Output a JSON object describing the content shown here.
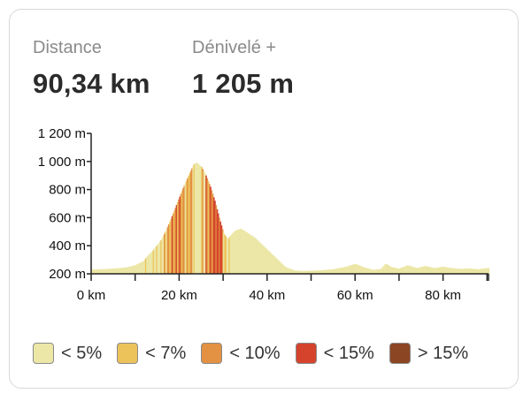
{
  "stats": {
    "distance": {
      "label": "Distance",
      "value": "90,34 km"
    },
    "elevation": {
      "label": "Dénivelé +",
      "value": "1 205 m"
    }
  },
  "legend": [
    {
      "label": "< 5%",
      "color": "#ece7a6"
    },
    {
      "label": "< 7%",
      "color": "#ecc25b"
    },
    {
      "label": "< 10%",
      "color": "#e39142"
    },
    {
      "label": "< 15%",
      "color": "#d5432d"
    },
    {
      "label": "> 15%",
      "color": "#8c4523"
    }
  ],
  "chart_data": {
    "type": "area",
    "xlabel": "",
    "ylabel": "",
    "x_unit": "km",
    "y_unit": "m",
    "xlim": [
      0,
      90.34
    ],
    "ylim": [
      200,
      1200
    ],
    "x_ticks": [
      "0 km",
      "20 km",
      "40 km",
      "60 km",
      "80 km"
    ],
    "x_tick_values": [
      0,
      20,
      40,
      60,
      80
    ],
    "y_ticks": [
      "1 200 m",
      "1 000 m",
      "800 m",
      "600 m",
      "400 m",
      "200 m"
    ],
    "y_tick_values": [
      1200,
      1000,
      800,
      600,
      400,
      200
    ],
    "profile": {
      "x": [
        0,
        4,
        8,
        10,
        12,
        13,
        14,
        15,
        16,
        17,
        18,
        19,
        20,
        21,
        22,
        23,
        23.5,
        24,
        25,
        26,
        27,
        28,
        29,
        30,
        31,
        32,
        33,
        34,
        35,
        36,
        37,
        38,
        39,
        40,
        41,
        42,
        43,
        44,
        46,
        48,
        50,
        52,
        55,
        58,
        60,
        62,
        64,
        66,
        67,
        68,
        70,
        72,
        74,
        76,
        78,
        80,
        82,
        84,
        86,
        88,
        90.34
      ],
      "y": [
        230,
        235,
        245,
        260,
        290,
        330,
        360,
        400,
        440,
        500,
        570,
        650,
        730,
        810,
        880,
        950,
        980,
        990,
        960,
        900,
        820,
        720,
        600,
        490,
        440,
        480,
        510,
        520,
        500,
        480,
        460,
        430,
        400,
        370,
        340,
        310,
        280,
        250,
        225,
        220,
        222,
        225,
        232,
        250,
        270,
        245,
        228,
        235,
        270,
        250,
        235,
        260,
        240,
        255,
        240,
        250,
        240,
        235,
        238,
        232,
        242
      ]
    },
    "gradient_classes": [
      "< 5%",
      "< 7%",
      "< 10%",
      "< 15%",
      "> 15%"
    ]
  }
}
